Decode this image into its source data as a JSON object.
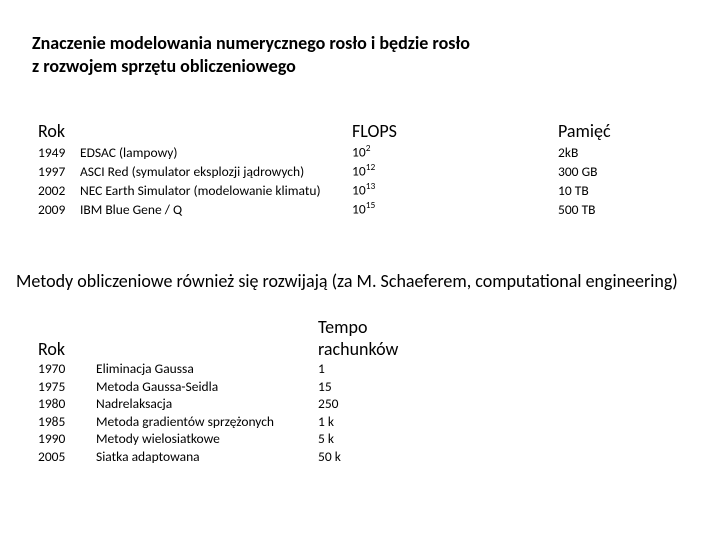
{
  "colors": {
    "background": "#ffffff",
    "text": "#000000"
  },
  "fonts": {
    "family": "Calibri, Arial, sans-serif",
    "title_size_pt": 18,
    "header_size_pt": 18,
    "row_size_pt": 13.5
  },
  "title1_line1": "Znaczenie modelowania numerycznego rosło i będzie rosło",
  "title1_line2": "z rozwojem sprzętu obliczeniowego",
  "table1": {
    "headers": {
      "col1": "Rok",
      "col2": "FLOPS",
      "col3": "Pamięć"
    },
    "rows": [
      {
        "year": "1949",
        "desc": "EDSAC (lampowy)",
        "flops_base": "10",
        "flops_exp": "2",
        "mem": "2kB"
      },
      {
        "year": "1997",
        "desc": "ASCI Red (symulator eksplozji jądrowych)",
        "flops_base": "10",
        "flops_exp": "12",
        "mem": "300 GB"
      },
      {
        "year": "2002",
        "desc": "NEC Earth Simulator (modelowanie klimatu)",
        "flops_base": "10",
        "flops_exp": "13",
        "mem": " 10 TB"
      },
      {
        "year": "2009",
        "desc": "IBM Blue Gene / Q",
        "flops_base": "10",
        "flops_exp": "15",
        "mem": " 500 TB"
      }
    ]
  },
  "subtitle": "Metody obliczeniowe również się rozwijają (za M. Schaeferem, computational engineering)",
  "table2": {
    "headers": {
      "col1": "Rok",
      "col2": "Tempo rachunków"
    },
    "rows": [
      {
        "year": "1970",
        "method": "Eliminacja Gaussa",
        "tempo": "1"
      },
      {
        "year": "1975",
        "method": "Metoda Gaussa-Seidla",
        "tempo": "15"
      },
      {
        "year": "1980",
        "method": "Nadrelaksacja",
        "tempo": "250"
      },
      {
        "year": "1985",
        "method": "Metoda gradientów sprzężonych",
        "tempo": "1 k"
      },
      {
        "year": "1990",
        "method": "Metody wielosiatkowe",
        "tempo": "5 k"
      },
      {
        "year": "2005",
        "method": "Siatka adaptowana",
        "tempo": "50 k"
      }
    ]
  }
}
